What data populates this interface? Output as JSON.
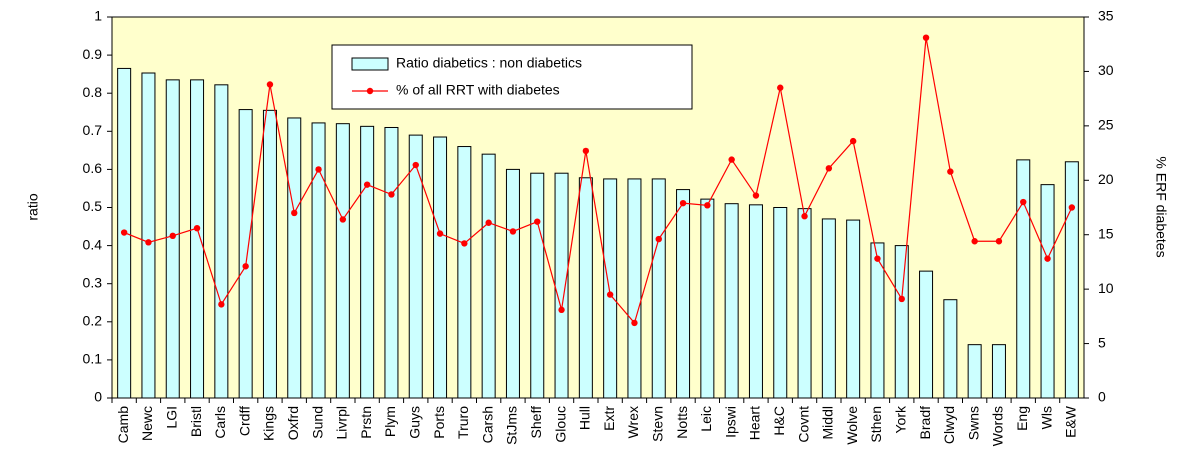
{
  "chart_data": {
    "type": "bar",
    "categories": [
      "Camb",
      "Newc",
      "LGI",
      "Bristl",
      "Carls",
      "Crdff",
      "Kings",
      "Oxfrd",
      "Sund",
      "Livrpl",
      "Prstn",
      "Plym",
      "Guys",
      "Ports",
      "Truro",
      "Carsh",
      "StJms",
      "Sheff",
      "Glouc",
      "Hull",
      "Extr",
      "Wrex",
      "Stevn",
      "Notts",
      "Leic",
      "Ipswi",
      "Heart",
      "H&C",
      "Covnt",
      "Middl",
      "Wolve",
      "Sthen",
      "York",
      "Bradf",
      "Clwyd",
      "Swns",
      "Words",
      "Eng",
      "Wls",
      "E&W"
    ],
    "series": [
      {
        "name": "Ratio diabetics : non diabetics",
        "type": "bar",
        "color": "#ccffff",
        "values": [
          0.865,
          0.853,
          0.835,
          0.835,
          0.822,
          0.757,
          0.755,
          0.735,
          0.722,
          0.72,
          0.713,
          0.71,
          0.69,
          0.685,
          0.66,
          0.64,
          0.6,
          0.59,
          0.59,
          0.578,
          0.575,
          0.575,
          0.575,
          0.547,
          0.522,
          0.51,
          0.507,
          0.5,
          0.497,
          0.47,
          0.467,
          0.407,
          0.4,
          0.333,
          0.258,
          0.14,
          0.14,
          0.625,
          0.56,
          0.62
        ]
      },
      {
        "name": "% of all RRT with diabetes",
        "type": "line",
        "axis": "y2",
        "color": "#ff0000",
        "values": [
          15.2,
          14.3,
          14.9,
          15.6,
          8.6,
          12.1,
          28.8,
          17.0,
          21.0,
          16.4,
          19.6,
          18.7,
          21.4,
          15.1,
          14.2,
          16.1,
          15.3,
          16.2,
          8.1,
          22.7,
          9.5,
          6.9,
          14.6,
          17.9,
          17.7,
          21.9,
          18.6,
          28.5,
          16.7,
          21.1,
          23.6,
          12.8,
          9.1,
          33.1,
          20.8,
          14.4,
          14.4,
          18.0,
          12.8,
          17.5
        ]
      }
    ],
    "y_label": "ratio",
    "y2_label": "% ERF diabetes",
    "ylim": [
      0,
      1
    ],
    "yticks": [
      0,
      0.1,
      0.2,
      0.3,
      0.4,
      0.5,
      0.6,
      0.7,
      0.8,
      0.9,
      1
    ],
    "y2lim": [
      0,
      35
    ],
    "y2ticks": [
      0,
      5,
      10,
      15,
      20,
      25,
      30,
      35
    ],
    "plot_background": "#ffffcc"
  }
}
